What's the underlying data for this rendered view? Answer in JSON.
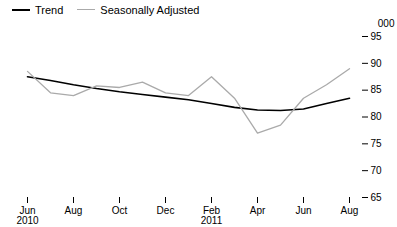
{
  "chart_data": {
    "type": "line",
    "ylabel": "000",
    "categories": [
      "Jun\n2010",
      null,
      "Aug",
      null,
      "Oct",
      null,
      "Dec",
      null,
      "Feb\n2011",
      null,
      "Apr",
      null,
      "Jun",
      null,
      "Aug"
    ],
    "series": [
      {
        "name": "Trend",
        "color": "#000000",
        "values": [
          87.5,
          86.8,
          86.0,
          85.3,
          84.7,
          84.2,
          83.7,
          83.2,
          82.5,
          81.8,
          81.3,
          81.2,
          81.5,
          82.5,
          83.5
        ]
      },
      {
        "name": "Seasonally Adjusted",
        "color": "#aaaaaa",
        "values": [
          88.5,
          84.5,
          84.0,
          85.8,
          85.5,
          86.5,
          84.5,
          84.0,
          87.5,
          83.5,
          77.0,
          78.5,
          83.5,
          86.0,
          89.0
        ]
      }
    ],
    "ylim": [
      65,
      95
    ],
    "yticks": [
      65,
      70,
      75,
      80,
      85,
      90,
      95
    ],
    "legend": "upper left",
    "grid": false
  }
}
